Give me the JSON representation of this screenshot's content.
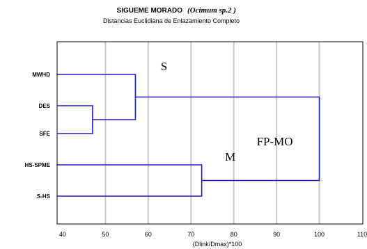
{
  "chart_data": {
    "type": "dendrogram",
    "title": "SIGUEME MORADO",
    "title_species": "(Ocimum sp.2 )",
    "subtitle": "Distancias Euclidiana de Enlazamiento Completo",
    "xlabel": "(Dlink/Dmax)*100",
    "xlim": [
      40,
      110
    ],
    "x_ticks": [
      40,
      50,
      60,
      70,
      80,
      90,
      100,
      110
    ],
    "grid": true,
    "leaves": [
      "MWHD",
      "DES",
      "SFE",
      "HS-SPME",
      "S-HS"
    ],
    "merges": [
      {
        "a": "DES",
        "b": "SFE",
        "height": 47
      },
      {
        "a": "MWHD",
        "b": "DES+SFE",
        "height": 57,
        "label": "S"
      },
      {
        "a": "HS-SPME",
        "b": "S-HS",
        "height": 72.5,
        "label": "M"
      },
      {
        "a": "S",
        "b": "M",
        "height": 100,
        "label": "FP-MO"
      }
    ],
    "link_color": "#1a1acc"
  }
}
